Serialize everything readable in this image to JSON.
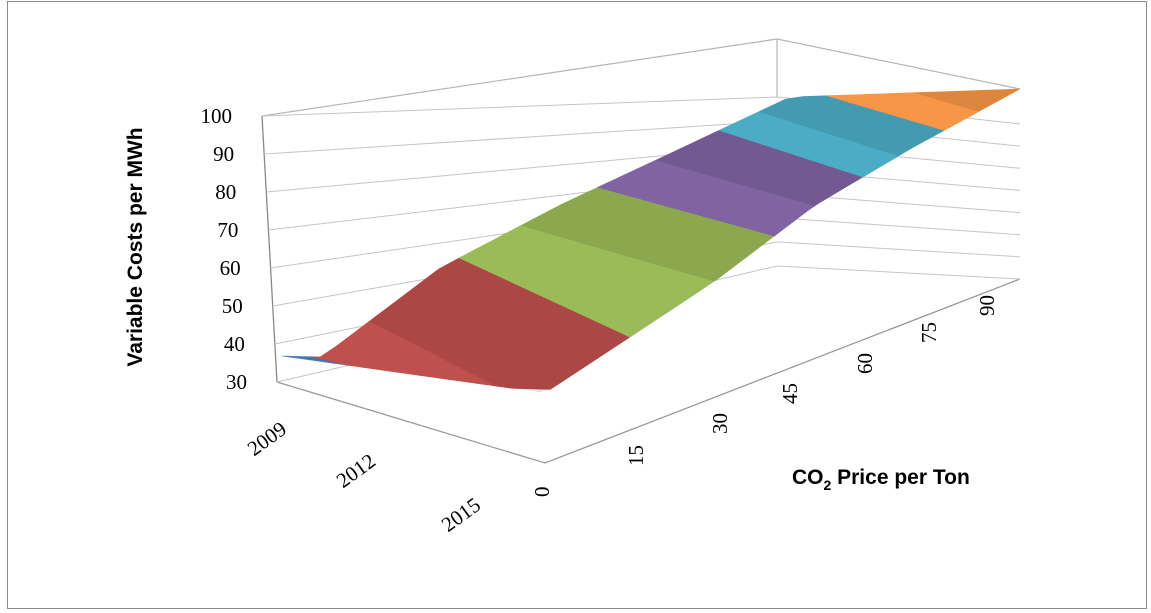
{
  "chart_data": {
    "type": "surface",
    "title": "",
    "zlabel": "Variable Costs per MWh",
    "xlabel_main": "CO",
    "xlabel_sub": "2",
    "xlabel_rest": " Price per Ton",
    "ylabel": "",
    "z_ticks": [
      "30",
      "40",
      "50",
      "60",
      "70",
      "80",
      "90",
      "100"
    ],
    "zlim": [
      30,
      100
    ],
    "x_ticks": [
      "0",
      "15",
      "30",
      "45",
      "60",
      "75",
      "90"
    ],
    "y_ticks": [
      "2009",
      "2012",
      "2015"
    ],
    "band_colors": [
      "#4f81bd",
      "#c0504d",
      "#9bbb59",
      "#8064a2",
      "#4bacc6",
      "#f79646"
    ],
    "bands": [
      {
        "range": [
          30,
          40
        ],
        "color": "#4f81bd"
      },
      {
        "range": [
          40,
          60
        ],
        "color": "#c0504d"
      },
      {
        "range": [
          60,
          70
        ],
        "color": "#9bbb59"
      },
      {
        "range": [
          70,
          80
        ],
        "color": "#8064a2"
      },
      {
        "range": [
          80,
          90
        ],
        "color": "#4bacc6"
      },
      {
        "range": [
          90,
          100
        ],
        "color": "#f79646"
      }
    ],
    "surface_profile": {
      "x": [
        0,
        15,
        30,
        45,
        60,
        75,
        90,
        100
      ],
      "z_2009": [
        38,
        45,
        55,
        65,
        75,
        86,
        95,
        100
      ],
      "z_2015": [
        35,
        43,
        53,
        63,
        73,
        83,
        92,
        98
      ]
    },
    "grid": true,
    "legend": "none"
  }
}
